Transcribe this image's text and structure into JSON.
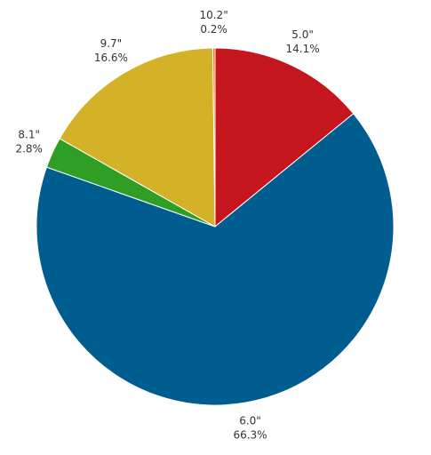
{
  "chart_data": {
    "type": "pie",
    "title": "",
    "slices": [
      {
        "label": "5.0\"",
        "value": 14.1,
        "percent_label": "14.1%",
        "color": "#c4161c"
      },
      {
        "label": "6.0\"",
        "value": 66.3,
        "percent_label": "66.3%",
        "color": "#005d8f"
      },
      {
        "label": "8.1\"",
        "value": 2.8,
        "percent_label": "2.8%",
        "color": "#2f9e25"
      },
      {
        "label": "9.7\"",
        "value": 16.6,
        "percent_label": "16.6%",
        "color": "#d4b227"
      },
      {
        "label": "10.2\"",
        "value": 0.2,
        "percent_label": "0.2%",
        "color": "#e07b22"
      }
    ],
    "start_angle": "top",
    "direction": "clockwise",
    "legend": "none"
  }
}
